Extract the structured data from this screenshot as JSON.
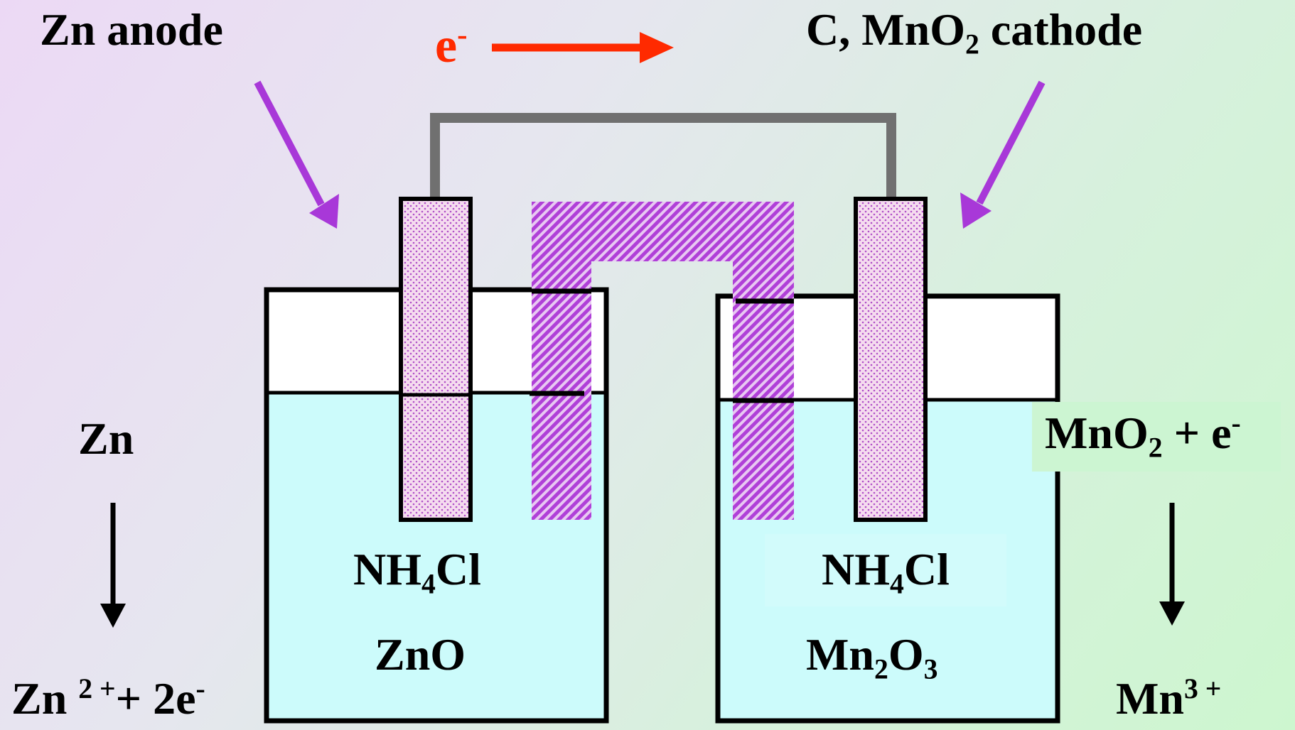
{
  "labels": {
    "anode": "Zn  anode",
    "electron": "e",
    "electron_charge": "-",
    "cathode_pre": "C, MnO",
    "cathode_sub": "2",
    "cathode_post": " cathode",
    "zn": "Zn",
    "zn_product": "Zn",
    "zn_product_charge": "2 +",
    "zn_product_rest": "+  2e",
    "zn_product_rest_charge": "-",
    "mno2_pre": "MnO",
    "mno2_sub": "2",
    "mno2_post": " + e",
    "mno2_charge": "-",
    "mn_product": "Mn",
    "mn_product_charge": "3 +",
    "left_electrolyte_pre": "NH",
    "left_electrolyte_sub": "4",
    "left_electrolyte_post": "Cl",
    "left_oxide": "ZnO",
    "right_electrolyte_pre": "NH",
    "right_electrolyte_sub": "4",
    "right_electrolyte_post": "Cl",
    "right_oxide_pre": "Mn",
    "right_oxide_sub1": "2",
    "right_oxide_mid": "O",
    "right_oxide_sub2": "3"
  },
  "colors": {
    "electrolyte": "#ccfbfb",
    "electrode": "#f5dcef",
    "electrode_dots": "#b050c8",
    "salt_bridge": "#b040d8",
    "pointer_arrow": "#a838d8",
    "electron_arrow": "#ff2a00",
    "wire": "#707070",
    "cap": "#ffffff"
  }
}
